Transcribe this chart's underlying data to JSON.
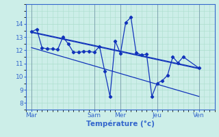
{
  "xlabel": "Température (°c)",
  "bg_color": "#cceee8",
  "grid_color": "#aaddcc",
  "line_color": "#1133bb",
  "spine_color": "#3366cc",
  "tick_color": "#3366cc",
  "ylim": [
    7.5,
    15.5
  ],
  "yticks": [
    8,
    9,
    10,
    11,
    12,
    13,
    14
  ],
  "xlim": [
    0,
    36
  ],
  "xtick_positions": [
    1,
    13,
    18,
    25,
    33
  ],
  "xtick_labels": [
    "Mar",
    "Sam",
    "Mer",
    "Jeu",
    "Ven"
  ],
  "series1_x": [
    1,
    2,
    3,
    4,
    5,
    6,
    7,
    8,
    9,
    10,
    11,
    12,
    13,
    14,
    15,
    16,
    17,
    18,
    19,
    20,
    21,
    22,
    23,
    24,
    25,
    26,
    27,
    28,
    29,
    30,
    33
  ],
  "series1_y": [
    13.4,
    13.6,
    12.2,
    12.1,
    12.1,
    12.05,
    13.0,
    12.5,
    11.85,
    11.85,
    11.9,
    11.9,
    11.85,
    12.3,
    10.4,
    8.5,
    12.7,
    11.75,
    14.1,
    14.5,
    11.8,
    11.65,
    11.7,
    8.5,
    9.5,
    9.7,
    10.1,
    11.5,
    11.05,
    11.5,
    10.65
  ],
  "line2_x": [
    1,
    33
  ],
  "line2_y": [
    13.4,
    10.65
  ],
  "line3_x": [
    1,
    33
  ],
  "line3_y": [
    12.2,
    8.5
  ],
  "line4_x": [
    1,
    33
  ],
  "line4_y": [
    13.35,
    10.6
  ],
  "vline_x": [
    1,
    13,
    18,
    25,
    33
  ]
}
